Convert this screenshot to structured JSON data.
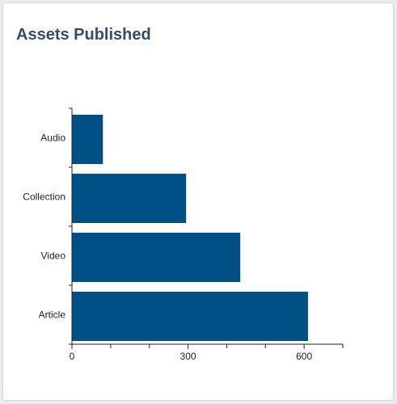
{
  "card": {
    "title": "Assets Published"
  },
  "chart_data": {
    "type": "bar",
    "orientation": "horizontal",
    "categories": [
      "Audio",
      "Collection",
      "Video",
      "Article"
    ],
    "values": [
      80,
      295,
      435,
      610
    ],
    "xlim": [
      0,
      700
    ],
    "xticks": [
      0,
      300,
      600
    ],
    "xminorticks": [
      100,
      200,
      400,
      500,
      700
    ],
    "grid": false,
    "legend": "none",
    "colors": {
      "bar": "#004f86",
      "axis": "#222222"
    }
  }
}
